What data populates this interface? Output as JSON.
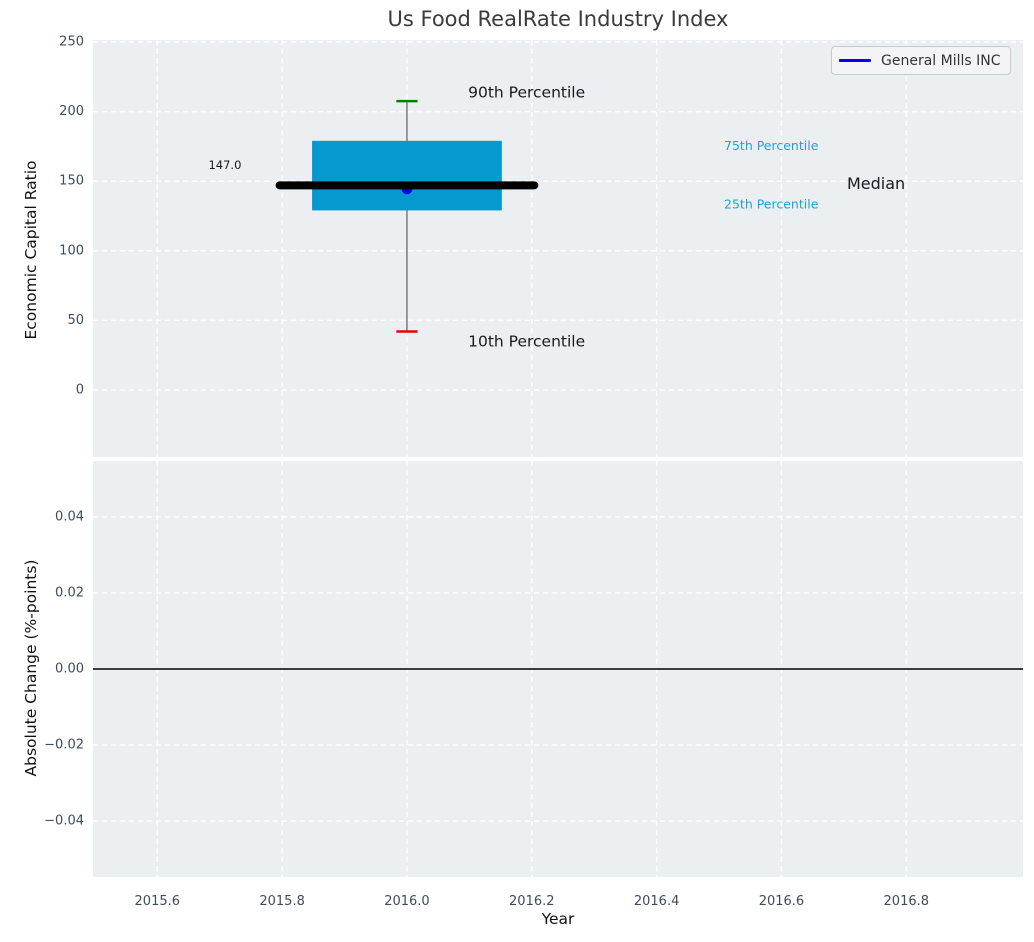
{
  "title": "Us Food RealRate Industry Index",
  "legend": {
    "label": "General Mills INC",
    "line_color": "#0202ee"
  },
  "colors": {
    "figure_background": "#ffffff",
    "plot_background": "#eceff1",
    "grid": "#ffffff",
    "tick_label": "#3e4c5c",
    "title": "#3b3b3b",
    "axis_label": "#111111",
    "box_fill": "#0699cf",
    "median_line": "#000000",
    "whisker": "#5f5f5f",
    "cap_90th": "#008002",
    "cap_10th": "#ea0011",
    "point_blue": "#0202ee",
    "percentile_label_cyan": "#20a2d2",
    "annotation_dark": "#1a1a1a",
    "zero_line": "#000000",
    "legend_border": "#c9c9cd",
    "legend_background": "#f4f4f6",
    "legend_text": "#333333"
  },
  "chart_data": [
    {
      "type": "box",
      "panel": "top",
      "ylabel": "Economic Capital Ratio",
      "ylim": [
        -48.1,
        251.4
      ],
      "yticks": [
        {
          "v": 0,
          "label": "0"
        },
        {
          "v": 50,
          "label": "50"
        },
        {
          "v": 100,
          "label": "100"
        },
        {
          "v": 150,
          "label": "150"
        },
        {
          "v": 200,
          "label": "200"
        },
        {
          "v": 250,
          "label": "250"
        }
      ],
      "grid": true,
      "box": {
        "x": 2016.0,
        "p10": 42,
        "p25": 129,
        "median": 147.0,
        "p75": 179,
        "p90": 207.5,
        "box_half_width": 0.152,
        "median_half_width": 0.204,
        "cap_half_width": 0.017
      },
      "company_point": {
        "name": "General Mills INC",
        "x": 2016.0,
        "y": 144.6
      },
      "annotations": [
        {
          "text": "90th Percentile",
          "x": 2016.098,
          "y": 213.8,
          "size": 15.5,
          "color": "#1a1a1a"
        },
        {
          "text": "10th Percentile",
          "x": 2016.098,
          "y": 35.0,
          "size": 15.5,
          "color": "#1a1a1a"
        },
        {
          "text": "75th Percentile",
          "x": 2016.508,
          "y": 175.5,
          "size": 12.5,
          "color": "#20a2d2"
        },
        {
          "text": "25th Percentile",
          "x": 2016.508,
          "y": 133.5,
          "size": 12.5,
          "color": "#20a2d2"
        },
        {
          "text": "Median",
          "x": 2016.705,
          "y": 148.5,
          "size": 16.0,
          "color": "#1a1a1a"
        },
        {
          "text": "147.0",
          "x": 2015.682,
          "y": 161.5,
          "size": 11.5,
          "color": "#1a1a1a"
        }
      ]
    },
    {
      "type": "line",
      "panel": "bottom",
      "ylabel": "Absolute Change (%-points)",
      "xlabel": "Year",
      "xlim": [
        2015.497,
        2016.987
      ],
      "xticks": [
        {
          "v": 2015.6,
          "label": "2015.6"
        },
        {
          "v": 2015.8,
          "label": "2015.8"
        },
        {
          "v": 2016.0,
          "label": "2016.0"
        },
        {
          "v": 2016.2,
          "label": "2016.2"
        },
        {
          "v": 2016.4,
          "label": "2016.4"
        },
        {
          "v": 2016.6,
          "label": "2016.6"
        },
        {
          "v": 2016.8,
          "label": "2016.8"
        }
      ],
      "ylim": [
        -0.0547,
        0.0547
      ],
      "yticks": [
        {
          "v": 0.04,
          "label": "0.04"
        },
        {
          "v": 0.02,
          "label": "0.02"
        },
        {
          "v": 0.0,
          "label": "0.00"
        },
        {
          "v": -0.02,
          "label": "−0.02"
        },
        {
          "v": -0.04,
          "label": "−0.04"
        }
      ],
      "grid": true,
      "zero_line_y": 0.0
    }
  ]
}
